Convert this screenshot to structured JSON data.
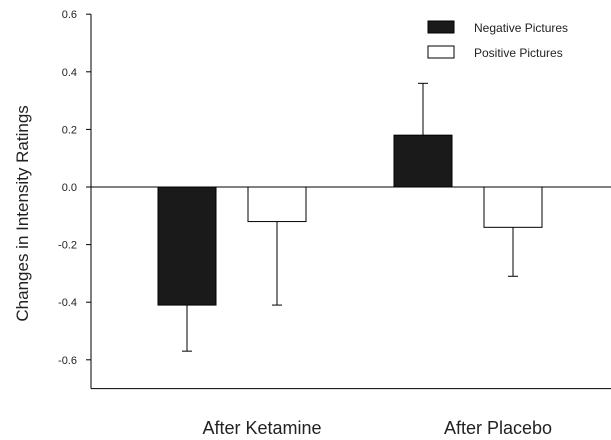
{
  "chart_data": {
    "type": "bar",
    "title": "",
    "xlabel": "",
    "ylabel": "Changes in Intensity Ratings",
    "categories": [
      "After Ketamine",
      "After Placebo"
    ],
    "series": [
      {
        "name": "Negative Pictures",
        "values": [
          -0.41,
          0.18
        ],
        "error_plus": [
          0.16,
          0.18
        ],
        "error_minus": [
          0.16,
          0.18
        ],
        "color": "#1a1a1a"
      },
      {
        "name": "Positive Pictures",
        "values": [
          -0.12,
          -0.14
        ],
        "error_plus": [
          0.29,
          0.17
        ],
        "error_minus": [
          0.29,
          0.17
        ],
        "color": "#ffffff"
      }
    ],
    "ylim": [
      -0.7,
      0.6
    ],
    "yticks": [
      0.6,
      0.4,
      0.2,
      0.0,
      -0.2,
      -0.4,
      -0.6
    ],
    "ytick_labels": [
      "0.6",
      "0.4",
      "0.2",
      "0.0",
      "-0.2",
      "-0.4",
      "-0.6"
    ],
    "grid": false,
    "legend_position": "top-right",
    "error_bar_direction": "away-from-zero"
  }
}
